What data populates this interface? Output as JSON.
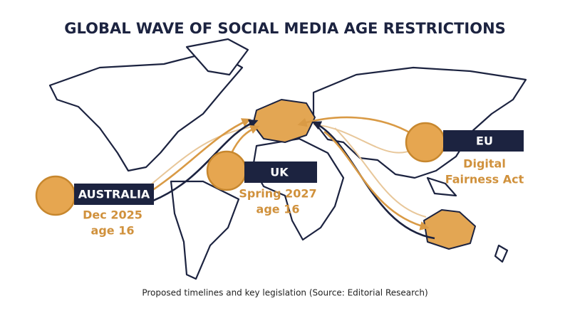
{
  "header": {
    "title": "GLOBAL WAVE OF SOCIAL MEDIA AGE RESTRICTIONS"
  },
  "markers": [
    {
      "label": "AUSTRALIA",
      "lines": [
        "Dec 2025",
        "age 16"
      ]
    },
    {
      "label": "UK",
      "lines": [
        "Spring 2027",
        "age 16"
      ]
    },
    {
      "label": "EU",
      "lines": [
        "Digital",
        "Fairness Act"
      ]
    }
  ],
  "caption": "Proposed timelines and key legislation (Source: Editorial Research)"
}
